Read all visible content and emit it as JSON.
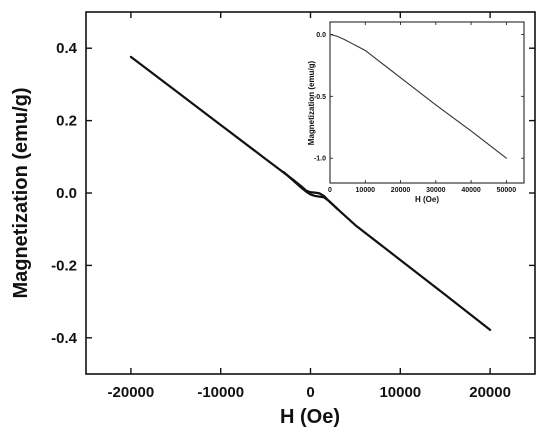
{
  "chart_data": [
    {
      "type": "line",
      "title": "",
      "xlabel": "H (Oe)",
      "ylabel": "Magnetization (emu/g)",
      "xlim": [
        -25000,
        25000
      ],
      "ylim": [
        -0.5,
        0.5
      ],
      "xticks": [
        -20000,
        -10000,
        0,
        10000,
        20000
      ],
      "yticks": [
        0.4,
        0.2,
        0.0,
        -0.2,
        -0.4
      ],
      "xtick_labels": [
        "-20000",
        "-10000",
        "0",
        "10000",
        "20000"
      ],
      "ytick_labels": [
        "0.4",
        "0.2",
        "0.0",
        "-0.2",
        "-0.4"
      ],
      "grid": false,
      "series": [
        {
          "color": "#111111",
          "x": [
            -20000,
            -15000,
            -10000,
            -5000,
            -2000,
            -1000,
            -500,
            0,
            500,
            1000,
            1500,
            2000,
            3000,
            5000,
            10000,
            15000,
            20000
          ],
          "y": [
            0.376,
            0.282,
            0.188,
            0.094,
            0.038,
            0.018,
            0.007,
            0.002,
            0.001,
            -0.001,
            -0.008,
            -0.021,
            -0.044,
            -0.089,
            -0.185,
            -0.281,
            -0.378
          ]
        },
        {
          "color": "#111111",
          "x": [
            -3000,
            -2000,
            -1000,
            -500,
            0,
            500,
            1000,
            1500,
            2000,
            3000
          ],
          "y": [
            0.058,
            0.036,
            0.014,
            0.004,
            -0.004,
            -0.008,
            -0.01,
            -0.012,
            -0.021,
            -0.044
          ]
        }
      ]
    },
    {
      "type": "line",
      "title": "",
      "xlabel": "H (Oe)",
      "ylabel": "Magnetization (emu/g)",
      "xlim": [
        0,
        55000
      ],
      "ylim": [
        -1.2,
        0.1
      ],
      "xticks": [
        0,
        10000,
        20000,
        30000,
        40000,
        50000
      ],
      "yticks": [
        0.0,
        -0.5,
        -1.0
      ],
      "xtick_labels": [
        "0",
        "10000",
        "20000",
        "30000",
        "40000",
        "50000"
      ],
      "ytick_labels": [
        "0.0",
        "-0.5",
        "-1.0"
      ],
      "grid": false,
      "series": [
        {
          "color": "#333333",
          "x": [
            0,
            2000,
            4000,
            6000,
            8000,
            10000,
            20000,
            30000,
            40000,
            50000
          ],
          "y": [
            0.0,
            -0.015,
            -0.04,
            -0.07,
            -0.1,
            -0.13,
            -0.35,
            -0.57,
            -0.78,
            -1.0
          ]
        }
      ]
    }
  ]
}
